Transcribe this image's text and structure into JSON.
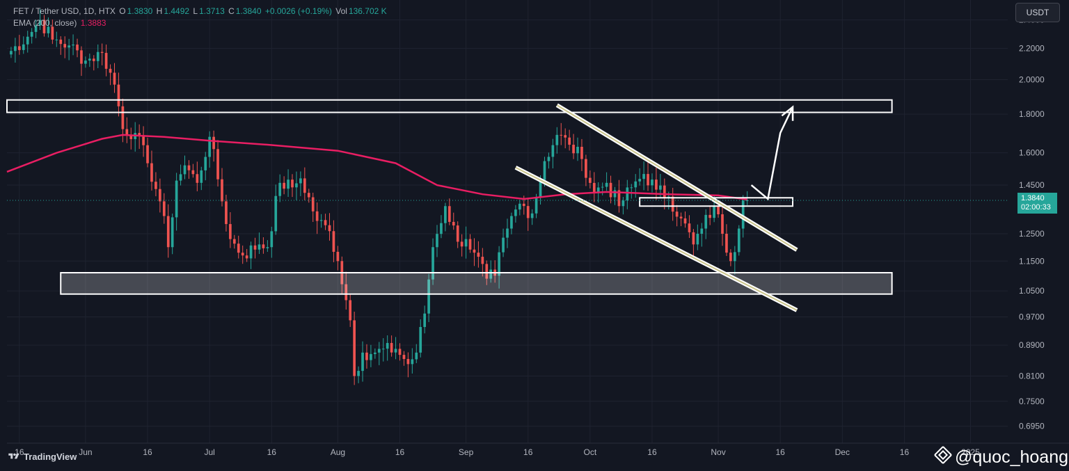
{
  "legend": {
    "symbol": "FET / Tether USD, 1D, HTX",
    "o_label": "O",
    "o": "1.3830",
    "h_label": "H",
    "h": "1.4492",
    "l_label": "L",
    "l": "1.3713",
    "c_label": "C",
    "c": "1.3840",
    "change": "+0.0026 (+0.19%)",
    "vol_label": "Vol",
    "vol": "136.702 K",
    "ema_label": "EMA (200, close)",
    "ema": "1.3883"
  },
  "currency": "USDT",
  "price_badge": {
    "price": "1.3840",
    "countdown": "02:00:33"
  },
  "branding": {
    "logo_text": "TradingView",
    "watermark": "@quoc_hoang"
  },
  "colors": {
    "background": "#131722",
    "up": "#26a69a",
    "down": "#ef5350",
    "ema": "#e91e63",
    "annotation": "#ffffff"
  },
  "chart_data": {
    "type": "candlestick",
    "y_axis": {
      "scale": "log",
      "range": [
        0.66,
        2.55
      ],
      "ticks": [
        2.4,
        2.2,
        2.0,
        1.8,
        1.6,
        1.45,
        1.25,
        1.15,
        1.05,
        0.97,
        0.89,
        0.81,
        0.75,
        0.695
      ],
      "tick_labels": [
        "2.4000",
        "2.2000",
        "2.0000",
        "1.8000",
        "1.6000",
        "1.4500",
        "1.2500",
        "1.1500",
        "1.0500",
        "0.9700",
        "0.8900",
        "0.8100",
        "0.7500",
        "0.6950"
      ]
    },
    "x_axis": {
      "range": [
        "2024-05-13",
        "2025-01-10"
      ],
      "ticks": [
        {
          "date": "2024-05-16",
          "label": "16"
        },
        {
          "date": "2024-06-01",
          "label": "Jun"
        },
        {
          "date": "2024-06-16",
          "label": "16"
        },
        {
          "date": "2024-07-01",
          "label": "Jul"
        },
        {
          "date": "2024-07-16",
          "label": "16"
        },
        {
          "date": "2024-08-01",
          "label": "Aug"
        },
        {
          "date": "2024-08-16",
          "label": "16"
        },
        {
          "date": "2024-09-01",
          "label": "Sep"
        },
        {
          "date": "2024-09-16",
          "label": "16"
        },
        {
          "date": "2024-10-01",
          "label": "Oct"
        },
        {
          "date": "2024-10-16",
          "label": "16"
        },
        {
          "date": "2024-11-01",
          "label": "Nov"
        },
        {
          "date": "2024-11-16",
          "label": "16"
        },
        {
          "date": "2024-12-01",
          "label": "Dec"
        },
        {
          "date": "2024-12-16",
          "label": "16"
        },
        {
          "date": "2025-01-01",
          "label": "2025"
        }
      ]
    },
    "close_anchors": [
      [
        "2024-05-13",
        2.16
      ],
      [
        "2024-05-18",
        2.28
      ],
      [
        "2024-05-21",
        2.4
      ],
      [
        "2024-05-24",
        2.26
      ],
      [
        "2024-05-28",
        2.22
      ],
      [
        "2024-06-01",
        2.12
      ],
      [
        "2024-06-05",
        2.17
      ],
      [
        "2024-06-08",
        1.97
      ],
      [
        "2024-06-10",
        1.72
      ],
      [
        "2024-06-13",
        1.7
      ],
      [
        "2024-06-16",
        1.55
      ],
      [
        "2024-06-19",
        1.38
      ],
      [
        "2024-06-21",
        1.2
      ],
      [
        "2024-06-23",
        1.47
      ],
      [
        "2024-06-25",
        1.54
      ],
      [
        "2024-06-28",
        1.46
      ],
      [
        "2024-07-01",
        1.68
      ],
      [
        "2024-07-04",
        1.38
      ],
      [
        "2024-07-06",
        1.23
      ],
      [
        "2024-07-09",
        1.17
      ],
      [
        "2024-07-13",
        1.21
      ],
      [
        "2024-07-15",
        1.2
      ],
      [
        "2024-07-18",
        1.46
      ],
      [
        "2024-07-21",
        1.44
      ],
      [
        "2024-07-23",
        1.48
      ],
      [
        "2024-07-27",
        1.3
      ],
      [
        "2024-07-30",
        1.26
      ],
      [
        "2024-08-01",
        1.15
      ],
      [
        "2024-08-04",
        0.96
      ],
      [
        "2024-08-05",
        0.81
      ],
      [
        "2024-08-07",
        0.87
      ],
      [
        "2024-08-10",
        0.87
      ],
      [
        "2024-08-15",
        0.88
      ],
      [
        "2024-08-18",
        0.84
      ],
      [
        "2024-08-20",
        0.87
      ],
      [
        "2024-08-22",
        0.98
      ],
      [
        "2024-08-24",
        1.2
      ],
      [
        "2024-08-27",
        1.36
      ],
      [
        "2024-08-30",
        1.22
      ],
      [
        "2024-09-01",
        1.23
      ],
      [
        "2024-09-03",
        1.18
      ],
      [
        "2024-09-06",
        1.09
      ],
      [
        "2024-09-08",
        1.1
      ],
      [
        "2024-09-11",
        1.27
      ],
      [
        "2024-09-14",
        1.37
      ],
      [
        "2024-09-17",
        1.33
      ],
      [
        "2024-09-20",
        1.56
      ],
      [
        "2024-09-23",
        1.69
      ],
      [
        "2024-09-26",
        1.64
      ],
      [
        "2024-09-29",
        1.57
      ],
      [
        "2024-10-02",
        1.42
      ],
      [
        "2024-10-05",
        1.46
      ],
      [
        "2024-10-08",
        1.36
      ],
      [
        "2024-10-11",
        1.44
      ],
      [
        "2024-10-14",
        1.5
      ],
      [
        "2024-10-17",
        1.43
      ],
      [
        "2024-10-20",
        1.4
      ],
      [
        "2024-10-23",
        1.31
      ],
      [
        "2024-10-26",
        1.21
      ],
      [
        "2024-10-28",
        1.27
      ],
      [
        "2024-10-31",
        1.36
      ],
      [
        "2024-11-02",
        1.25
      ],
      [
        "2024-11-04",
        1.15
      ],
      [
        "2024-11-06",
        1.27
      ],
      [
        "2024-11-07",
        1.383
      ],
      [
        "2024-11-08",
        1.384
      ]
    ],
    "ema": {
      "name": "EMA (200, close)",
      "points": [
        [
          "2024-05-13",
          1.51
        ],
        [
          "2024-05-25",
          1.6
        ],
        [
          "2024-06-05",
          1.67
        ],
        [
          "2024-06-10",
          1.69
        ],
        [
          "2024-06-20",
          1.68
        ],
        [
          "2024-07-01",
          1.66
        ],
        [
          "2024-07-15",
          1.64
        ],
        [
          "2024-08-01",
          1.61
        ],
        [
          "2024-08-15",
          1.55
        ],
        [
          "2024-08-25",
          1.45
        ],
        [
          "2024-09-05",
          1.41
        ],
        [
          "2024-09-15",
          1.39
        ],
        [
          "2024-09-25",
          1.41
        ],
        [
          "2024-10-05",
          1.42
        ],
        [
          "2024-10-20",
          1.41
        ],
        [
          "2024-11-01",
          1.405
        ],
        [
          "2024-11-08",
          1.388
        ]
      ]
    },
    "annotations": {
      "resistance_zone": {
        "from": "2024-05-13",
        "to": "2024-12-13",
        "high": 1.88,
        "low": 1.81
      },
      "support_zone": {
        "from": "2024-05-26",
        "to": "2024-12-13",
        "high": 1.11,
        "low": 1.04
      },
      "retest_box": {
        "from": "2024-10-13",
        "to": "2024-11-19",
        "high": 1.395,
        "low": 1.36
      },
      "channel_upper": {
        "from": [
          "2024-09-23",
          1.85
        ],
        "to": [
          "2024-11-20",
          1.19
        ]
      },
      "channel_lower": {
        "from": [
          "2024-09-13",
          1.53
        ],
        "to": [
          "2024-11-20",
          0.99
        ]
      },
      "projection": [
        [
          "2024-11-09",
          1.45
        ],
        [
          "2024-11-13",
          1.39
        ],
        [
          "2024-11-16",
          1.7
        ],
        [
          "2024-11-19",
          1.84
        ]
      ]
    }
  }
}
